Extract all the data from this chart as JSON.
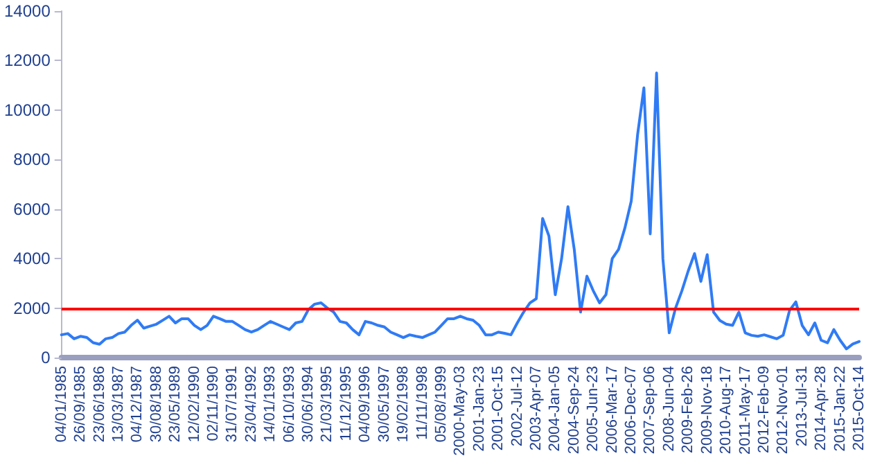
{
  "chart_data": {
    "type": "line",
    "categories": [
      "04/01/1985",
      null,
      null,
      "26/09/1985",
      null,
      null,
      "23/06/1986",
      null,
      null,
      "13/03/1987",
      null,
      null,
      "04/12/1987",
      null,
      null,
      "30/08/1988",
      null,
      null,
      "23/05/1989",
      null,
      null,
      "12/02/1990",
      null,
      null,
      "02/11/1990",
      null,
      null,
      "31/07/1991",
      null,
      null,
      "23/04/1992",
      null,
      null,
      "14/01/1993",
      null,
      null,
      "06/10/1993",
      null,
      null,
      "30/06/1994",
      null,
      null,
      "21/03/1995",
      null,
      null,
      "11/12/1995",
      null,
      null,
      "04/09/1996",
      null,
      null,
      "30/05/1997",
      null,
      null,
      "19/02/1998",
      null,
      null,
      "11/11/1998",
      null,
      null,
      "05/08/1999",
      null,
      null,
      "2000-May-03",
      null,
      null,
      "2001-Jan-23",
      null,
      null,
      "2001-Oct-15",
      null,
      null,
      "2002-Jul-12",
      null,
      null,
      "2003-Apr-07",
      null,
      null,
      "2004-Jan-05",
      null,
      null,
      "2004-Sep-24",
      null,
      null,
      "2005-Jun-23",
      null,
      null,
      "2006-Mar-17",
      null,
      null,
      "2006-Dec-07",
      null,
      null,
      "2007-Sep-06",
      null,
      null,
      "2008-Jun-04",
      null,
      null,
      "2009-Feb-26",
      null,
      null,
      "2009-Nov-18",
      null,
      null,
      "2010-Aug-17",
      null,
      null,
      "2011-May-17",
      null,
      null,
      "2012-Feb-09",
      null,
      null,
      "2012-Nov-01",
      null,
      null,
      "2013-Jul-31",
      null,
      null,
      "2014-Apr-28",
      null,
      null,
      "2015-Jan-22",
      null,
      null,
      "2015-Oct-14"
    ],
    "series": [
      {
        "color": "#2f7bf5",
        "values": [
          920,
          970,
          760,
          860,
          810,
          600,
          540,
          760,
          810,
          970,
          1030,
          1300,
          1510,
          1190,
          1270,
          1350,
          1510,
          1670,
          1400,
          1570,
          1570,
          1300,
          1130,
          1300,
          1670,
          1570,
          1460,
          1460,
          1300,
          1130,
          1030,
          1130,
          1300,
          1460,
          1350,
          1240,
          1130,
          1400,
          1460,
          1940,
          2160,
          2210,
          2000,
          1840,
          1460,
          1400,
          1130,
          920,
          1460,
          1400,
          1300,
          1240,
          1030,
          920,
          810,
          920,
          860,
          810,
          920,
          1030,
          1300,
          1570,
          1570,
          1670,
          1570,
          1510,
          1300,
          920,
          920,
          1030,
          980,
          920,
          1400,
          1840,
          2210,
          2380,
          5620,
          4910,
          2540,
          4000,
          6100,
          4370,
          1840,
          3290,
          2700,
          2210,
          2540,
          4000,
          4370,
          5240,
          6320,
          9000,
          10900,
          5000,
          11500,
          4000,
          1000,
          2000,
          2700,
          3500,
          4200,
          3080,
          4160,
          1840,
          1500,
          1350,
          1300,
          1840,
          1000,
          900,
          860,
          920,
          840,
          760,
          900,
          1900,
          2250,
          1300,
          920,
          1400,
          700,
          600,
          1130,
          700,
          350,
          550,
          650
        ]
      }
    ],
    "ylim": [
      0,
      14000
    ],
    "yticks": [
      0,
      2000,
      4000,
      6000,
      8000,
      10000,
      12000,
      14000
    ],
    "ref_lines": [
      {
        "axis": "y",
        "value": 2000,
        "color": "#ff0000"
      }
    ],
    "grid": false,
    "marker": "none",
    "line_style": "solid"
  }
}
